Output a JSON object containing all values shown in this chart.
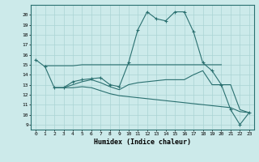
{
  "xlabel": "Humidex (Indice chaleur)",
  "background_color": "#cceaea",
  "grid_color": "#aad4d4",
  "line_color": "#2a7070",
  "xlim": [
    -0.5,
    23.5
  ],
  "ylim": [
    8.5,
    21.0
  ],
  "yticks": [
    9,
    10,
    11,
    12,
    13,
    14,
    15,
    16,
    17,
    18,
    19,
    20
  ],
  "xticks": [
    0,
    1,
    2,
    3,
    4,
    5,
    6,
    7,
    8,
    9,
    10,
    11,
    12,
    13,
    14,
    15,
    16,
    17,
    18,
    19,
    20,
    21,
    22,
    23
  ],
  "line1_x": [
    0,
    1,
    2,
    3,
    4,
    5,
    6,
    7,
    8,
    9,
    10,
    11,
    12,
    13,
    14,
    15,
    16,
    17,
    18,
    19,
    20,
    21,
    22,
    23
  ],
  "line1_y": [
    15.5,
    14.8,
    12.7,
    12.7,
    13.3,
    13.5,
    13.6,
    13.7,
    13.0,
    12.8,
    15.2,
    18.5,
    20.3,
    19.6,
    19.4,
    20.3,
    20.3,
    18.3,
    15.2,
    14.4,
    13.0,
    10.5,
    9.0,
    10.2
  ],
  "line2_x": [
    1,
    2,
    3,
    4,
    5,
    6,
    7,
    8,
    9,
    10,
    11,
    12,
    13,
    14,
    15,
    16,
    17,
    18,
    19,
    20
  ],
  "line2_y": [
    14.9,
    14.9,
    14.9,
    14.9,
    15.0,
    15.0,
    15.0,
    15.0,
    15.0,
    15.0,
    15.0,
    15.0,
    15.0,
    15.0,
    15.0,
    15.0,
    15.0,
    15.0,
    15.0,
    15.0
  ],
  "line3_x": [
    2,
    3,
    4,
    5,
    6,
    7,
    8,
    9,
    10,
    11,
    12,
    13,
    14,
    15,
    16,
    17,
    18,
    19,
    20,
    21,
    22,
    23
  ],
  "line3_y": [
    12.7,
    12.7,
    13.0,
    13.3,
    13.5,
    13.2,
    12.8,
    12.5,
    13.0,
    13.2,
    13.3,
    13.4,
    13.5,
    13.5,
    13.5,
    14.0,
    14.4,
    13.0,
    13.0,
    13.0,
    10.5,
    10.2
  ],
  "line4_x": [
    2,
    3,
    4,
    5,
    6,
    7,
    8,
    9,
    10,
    11,
    12,
    13,
    14,
    15,
    16,
    17,
    18,
    19,
    20,
    21,
    22,
    23
  ],
  "line4_y": [
    12.7,
    12.7,
    12.7,
    12.8,
    12.7,
    12.4,
    12.1,
    11.9,
    11.8,
    11.7,
    11.6,
    11.5,
    11.4,
    11.3,
    11.2,
    11.1,
    11.0,
    10.9,
    10.8,
    10.7,
    10.3,
    10.2
  ]
}
